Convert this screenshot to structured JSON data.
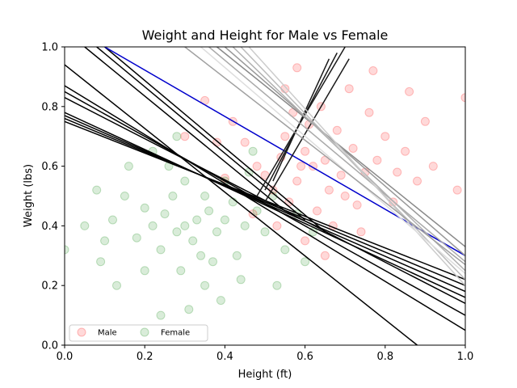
{
  "chart_data": {
    "type": "scatter",
    "title": "Weight and Height for Male vs Female",
    "xlabel": "Height (ft)",
    "ylabel": "Weight (lbs)",
    "xlim": [
      0,
      1
    ],
    "ylim": [
      0,
      1
    ],
    "x_ticks": [
      "0.0",
      "0.2",
      "0.4",
      "0.6",
      "0.8",
      "1.0"
    ],
    "y_ticks": [
      "0.0",
      "0.2",
      "0.4",
      "0.6",
      "0.8",
      "1.0"
    ],
    "grid": false,
    "legend_position": "lower-left",
    "series": [
      {
        "name": "Male",
        "color": "#ff0000",
        "alpha": 0.15,
        "cluster_center": [
          0.6,
          0.58
        ],
        "cluster_std": [
          0.1,
          0.11
        ],
        "points": [
          [
            0.62,
            0.6
          ],
          [
            0.58,
            0.55
          ],
          [
            0.65,
            0.62
          ],
          [
            0.55,
            0.7
          ],
          [
            0.7,
            0.5
          ],
          [
            0.6,
            0.65
          ],
          [
            0.68,
            0.72
          ],
          [
            0.52,
            0.52
          ],
          [
            0.75,
            0.58
          ],
          [
            0.63,
            0.45
          ],
          [
            0.57,
            0.78
          ],
          [
            0.72,
            0.66
          ],
          [
            0.48,
            0.6
          ],
          [
            0.66,
            0.52
          ],
          [
            0.59,
            0.6
          ],
          [
            0.8,
            0.7
          ],
          [
            0.54,
            0.63
          ],
          [
            0.61,
            0.74
          ],
          [
            0.69,
            0.57
          ],
          [
            0.73,
            0.47
          ],
          [
            0.45,
            0.68
          ],
          [
            0.56,
            0.48
          ],
          [
            0.78,
            0.62
          ],
          [
            0.64,
            0.8
          ],
          [
            0.5,
            0.57
          ],
          [
            0.85,
            0.65
          ],
          [
            0.42,
            0.75
          ],
          [
            0.67,
            0.4
          ],
          [
            0.88,
            0.55
          ],
          [
            0.35,
            0.82
          ],
          [
            0.76,
            0.78
          ],
          [
            0.6,
            0.35
          ],
          [
            0.92,
            0.6
          ],
          [
            0.38,
            0.68
          ],
          [
            0.71,
            0.86
          ],
          [
            0.82,
            0.48
          ],
          [
            0.47,
            0.44
          ],
          [
            0.55,
            0.86
          ],
          [
            0.98,
            0.52
          ],
          [
            1.0,
            0.83
          ],
          [
            0.3,
            0.7
          ],
          [
            0.65,
            0.3
          ],
          [
            0.9,
            0.75
          ],
          [
            0.74,
            0.38
          ],
          [
            0.53,
            0.4
          ],
          [
            0.86,
            0.85
          ],
          [
            0.4,
            0.56
          ],
          [
            0.77,
            0.92
          ],
          [
            0.58,
            0.93
          ],
          [
            0.83,
            0.58
          ]
        ]
      },
      {
        "name": "Female",
        "color": "#008000",
        "alpha": 0.15,
        "cluster_center": [
          0.33,
          0.42
        ],
        "cluster_std": [
          0.1,
          0.1
        ],
        "points": [
          [
            0.33,
            0.42
          ],
          [
            0.3,
            0.4
          ],
          [
            0.36,
            0.45
          ],
          [
            0.28,
            0.38
          ],
          [
            0.35,
            0.5
          ],
          [
            0.4,
            0.42
          ],
          [
            0.25,
            0.44
          ],
          [
            0.32,
            0.35
          ],
          [
            0.38,
            0.38
          ],
          [
            0.27,
            0.5
          ],
          [
            0.42,
            0.48
          ],
          [
            0.22,
            0.4
          ],
          [
            0.34,
            0.3
          ],
          [
            0.45,
            0.4
          ],
          [
            0.3,
            0.55
          ],
          [
            0.2,
            0.46
          ],
          [
            0.37,
            0.28
          ],
          [
            0.48,
            0.45
          ],
          [
            0.24,
            0.32
          ],
          [
            0.4,
            0.55
          ],
          [
            0.18,
            0.36
          ],
          [
            0.29,
            0.25
          ],
          [
            0.5,
            0.38
          ],
          [
            0.15,
            0.5
          ],
          [
            0.43,
            0.3
          ],
          [
            0.26,
            0.6
          ],
          [
            0.12,
            0.42
          ],
          [
            0.35,
            0.2
          ],
          [
            0.52,
            0.5
          ],
          [
            0.1,
            0.35
          ],
          [
            0.46,
            0.58
          ],
          [
            0.2,
            0.25
          ],
          [
            0.55,
            0.32
          ],
          [
            0.08,
            0.52
          ],
          [
            0.39,
            0.15
          ],
          [
            0.16,
            0.6
          ],
          [
            0.58,
            0.44
          ],
          [
            0.05,
            0.4
          ],
          [
            0.31,
            0.12
          ],
          [
            0.22,
            0.65
          ],
          [
            0.6,
            0.28
          ],
          [
            0.09,
            0.28
          ],
          [
            0.44,
            0.22
          ],
          [
            0.28,
            0.7
          ],
          [
            0.0,
            0.32
          ],
          [
            0.53,
            0.2
          ],
          [
            0.13,
            0.2
          ],
          [
            0.47,
            0.65
          ],
          [
            0.24,
            0.1
          ],
          [
            0.62,
            0.38
          ]
        ]
      }
    ],
    "lines": [
      {
        "color": "#000000",
        "p1": [
          0.0,
          0.94
        ],
        "p2": [
          0.88,
          0.0
        ]
      },
      {
        "color": "#000000",
        "p1": [
          0.0,
          0.87
        ],
        "p2": [
          1.0,
          0.05
        ]
      },
      {
        "color": "#000000",
        "p1": [
          0.0,
          0.85
        ],
        "p2": [
          1.0,
          0.1
        ]
      },
      {
        "color": "#000000",
        "p1": [
          0.0,
          0.83
        ],
        "p2": [
          1.0,
          0.14
        ]
      },
      {
        "color": "#000000",
        "p1": [
          0.0,
          0.78
        ],
        "p2": [
          1.0,
          0.16
        ]
      },
      {
        "color": "#000000",
        "p1": [
          0.0,
          0.77
        ],
        "p2": [
          1.0,
          0.18
        ]
      },
      {
        "color": "#000000",
        "p1": [
          0.0,
          0.76
        ],
        "p2": [
          1.0,
          0.2
        ]
      },
      {
        "color": "#000000",
        "p1": [
          0.0,
          0.75
        ],
        "p2": [
          1.0,
          0.22
        ]
      },
      {
        "color": "#000000",
        "p1": [
          0.05,
          1.0
        ],
        "p2": [
          0.55,
          0.45
        ]
      },
      {
        "color": "#000000",
        "p1": [
          0.08,
          1.0
        ],
        "p2": [
          0.6,
          0.42
        ]
      },
      {
        "color": "#000000",
        "p1": [
          0.1,
          1.0
        ],
        "p2": [
          0.65,
          0.38
        ]
      },
      {
        "color": "#0000cc",
        "p1": [
          0.1,
          1.0
        ],
        "p2": [
          1.0,
          0.3
        ]
      },
      {
        "color": "#1a1a1a",
        "p1": [
          0.48,
          0.5
        ],
        "p2": [
          0.7,
          1.0
        ]
      },
      {
        "color": "#1a1a1a",
        "p1": [
          0.5,
          0.52
        ],
        "p2": [
          0.68,
          0.98
        ]
      },
      {
        "color": "#1a1a1a",
        "p1": [
          0.52,
          0.55
        ],
        "p2": [
          0.66,
          0.96
        ]
      },
      {
        "color": "#1a1a1a",
        "p1": [
          0.5,
          0.48
        ],
        "p2": [
          0.71,
          0.96
        ]
      },
      {
        "color": "#888888",
        "p1": [
          0.38,
          1.0
        ],
        "p2": [
          1.0,
          0.33
        ]
      },
      {
        "color": "#999999",
        "p1": [
          0.4,
          1.0
        ],
        "p2": [
          1.0,
          0.3
        ]
      },
      {
        "color": "#aaaaaa",
        "p1": [
          0.36,
          1.0
        ],
        "p2": [
          1.0,
          0.28
        ]
      },
      {
        "color": "#b0b0b0",
        "p1": [
          0.42,
          1.0
        ],
        "p2": [
          1.0,
          0.25
        ]
      },
      {
        "color": "#bbbbbb",
        "p1": [
          0.44,
          1.0
        ],
        "p2": [
          1.0,
          0.22
        ]
      },
      {
        "color": "#cccccc",
        "p1": [
          0.46,
          1.0
        ],
        "p2": [
          1.0,
          0.2
        ]
      },
      {
        "color": "#dddddd",
        "p1": [
          0.34,
          1.0
        ],
        "p2": [
          1.0,
          0.24
        ]
      },
      {
        "color": "#a0a0a0",
        "p1": [
          0.3,
          1.0
        ],
        "p2": [
          1.0,
          0.27
        ]
      }
    ],
    "legend": [
      {
        "label": "Male",
        "color": "#ff0000"
      },
      {
        "label": "Female",
        "color": "#008000"
      }
    ]
  }
}
